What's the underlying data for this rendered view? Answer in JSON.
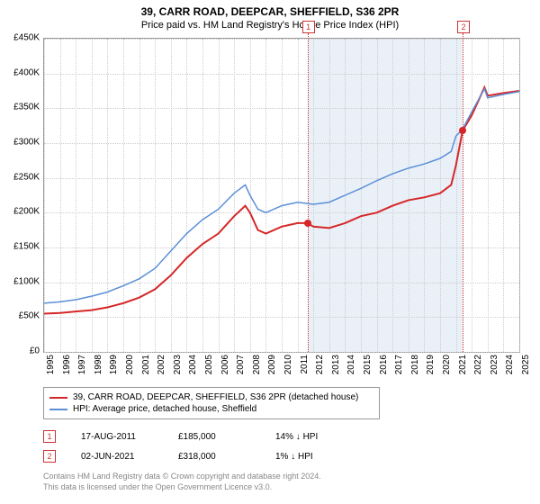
{
  "title": "39, CARR ROAD, DEEPCAR, SHEFFIELD, S36 2PR",
  "subtitle": "Price paid vs. HM Land Registry's House Price Index (HPI)",
  "chart": {
    "type": "line",
    "background_color": "#ffffff",
    "grid_color": "#cccccc",
    "border_color": "#999999",
    "title_fontsize": 12,
    "subtitle_fontsize": 11,
    "axis_fontsize": 10,
    "x": {
      "min": 1995,
      "max": 2025,
      "ticks": [
        1995,
        1996,
        1997,
        1998,
        1999,
        2000,
        2001,
        2002,
        2003,
        2004,
        2005,
        2006,
        2007,
        2008,
        2009,
        2010,
        2011,
        2012,
        2013,
        2014,
        2015,
        2016,
        2017,
        2018,
        2019,
        2020,
        2021,
        2022,
        2023,
        2024,
        2025
      ]
    },
    "y": {
      "min": 0,
      "max": 450000,
      "tick_step": 50000,
      "ticks": [
        0,
        50000,
        100000,
        150000,
        200000,
        250000,
        300000,
        350000,
        400000,
        450000
      ],
      "labels": [
        "£0",
        "£50K",
        "£100K",
        "£150K",
        "£200K",
        "£250K",
        "£300K",
        "£350K",
        "£400K",
        "£450K"
      ]
    },
    "shade": {
      "from": 2011.63,
      "to": 2021.42,
      "color": "#eaf0f8"
    },
    "vlines": [
      {
        "x": 2011.63,
        "label": "1",
        "color": "#cc3333"
      },
      {
        "x": 2021.42,
        "label": "2",
        "color": "#cc3333"
      }
    ],
    "series": [
      {
        "name": "39, CARR ROAD, DEEPCAR, SHEFFIELD, S36 2PR (detached house)",
        "color": "#d62728",
        "width": 2,
        "data": [
          [
            1995,
            55000
          ],
          [
            1996,
            56000
          ],
          [
            1997,
            58000
          ],
          [
            1998,
            60000
          ],
          [
            1999,
            64000
          ],
          [
            2000,
            70000
          ],
          [
            2001,
            78000
          ],
          [
            2002,
            90000
          ],
          [
            2003,
            110000
          ],
          [
            2004,
            135000
          ],
          [
            2005,
            155000
          ],
          [
            2006,
            170000
          ],
          [
            2007,
            195000
          ],
          [
            2007.7,
            210000
          ],
          [
            2008,
            200000
          ],
          [
            2008.5,
            175000
          ],
          [
            2009,
            170000
          ],
          [
            2010,
            180000
          ],
          [
            2011,
            185000
          ],
          [
            2011.63,
            185000
          ],
          [
            2012,
            180000
          ],
          [
            2013,
            178000
          ],
          [
            2014,
            185000
          ],
          [
            2015,
            195000
          ],
          [
            2016,
            200000
          ],
          [
            2017,
            210000
          ],
          [
            2018,
            218000
          ],
          [
            2019,
            222000
          ],
          [
            2020,
            228000
          ],
          [
            2020.7,
            240000
          ],
          [
            2021,
            268000
          ],
          [
            2021.42,
            318000
          ],
          [
            2022,
            340000
          ],
          [
            2022.8,
            380000
          ],
          [
            2023,
            368000
          ],
          [
            2024,
            372000
          ],
          [
            2025,
            375000
          ]
        ]
      },
      {
        "name": "HPI: Average price, detached house, Sheffield",
        "color": "#5b8fd6",
        "width": 1.5,
        "data": [
          [
            1995,
            70000
          ],
          [
            1996,
            72000
          ],
          [
            1997,
            75000
          ],
          [
            1998,
            80000
          ],
          [
            1999,
            86000
          ],
          [
            2000,
            95000
          ],
          [
            2001,
            105000
          ],
          [
            2002,
            120000
          ],
          [
            2003,
            145000
          ],
          [
            2004,
            170000
          ],
          [
            2005,
            190000
          ],
          [
            2006,
            205000
          ],
          [
            2007,
            228000
          ],
          [
            2007.7,
            240000
          ],
          [
            2008,
            225000
          ],
          [
            2008.5,
            205000
          ],
          [
            2009,
            200000
          ],
          [
            2010,
            210000
          ],
          [
            2011,
            215000
          ],
          [
            2012,
            212000
          ],
          [
            2013,
            215000
          ],
          [
            2014,
            225000
          ],
          [
            2015,
            235000
          ],
          [
            2016,
            246000
          ],
          [
            2017,
            256000
          ],
          [
            2018,
            264000
          ],
          [
            2019,
            270000
          ],
          [
            2020,
            278000
          ],
          [
            2020.7,
            288000
          ],
          [
            2021,
            310000
          ],
          [
            2021.42,
            320000
          ],
          [
            2022,
            345000
          ],
          [
            2022.8,
            378000
          ],
          [
            2023,
            365000
          ],
          [
            2024,
            370000
          ],
          [
            2025,
            374000
          ]
        ]
      }
    ],
    "sale_points": [
      {
        "x": 2011.63,
        "y": 185000,
        "color": "#d62728"
      },
      {
        "x": 2021.42,
        "y": 318000,
        "color": "#d62728"
      }
    ]
  },
  "legend": {
    "items": [
      {
        "color": "#d62728",
        "label": "39, CARR ROAD, DEEPCAR, SHEFFIELD, S36 2PR (detached house)"
      },
      {
        "color": "#5b8fd6",
        "label": "HPI: Average price, detached house, Sheffield"
      }
    ]
  },
  "events": [
    {
      "marker": "1",
      "date": "17-AUG-2011",
      "price": "£185,000",
      "delta": "14% ↓ HPI"
    },
    {
      "marker": "2",
      "date": "02-JUN-2021",
      "price": "£318,000",
      "delta": "1% ↓ HPI"
    }
  ],
  "footer": {
    "line1": "Contains HM Land Registry data © Crown copyright and database right 2024.",
    "line2": "This data is licensed under the Open Government Licence v3.0."
  }
}
